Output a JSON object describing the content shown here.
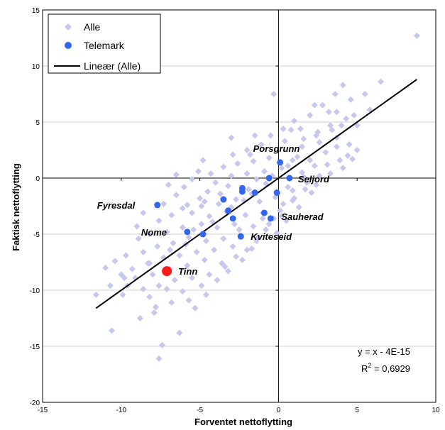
{
  "chart_data": {
    "type": "scatter",
    "xlabel": "Forventet nettoflytting",
    "ylabel": "Faktisk nettoflytting",
    "xlim": [
      -15,
      10
    ],
    "ylim": [
      -20,
      15
    ],
    "xticks": [
      -15,
      -10,
      -5,
      0,
      5,
      10
    ],
    "yticks": [
      -20,
      -15,
      -10,
      -5,
      0,
      5,
      10,
      15
    ],
    "xtick_labels": [
      "-15",
      "-10",
      "-5",
      "0",
      "5",
      "10"
    ],
    "ytick_labels": [
      "-20",
      "-15",
      "-10",
      "-5",
      "0",
      "5",
      "10",
      "15"
    ],
    "grid": "horizontal",
    "legend_position": "top-left",
    "legend": [
      {
        "key": "alle",
        "label": "Alle"
      },
      {
        "key": "telemark",
        "label": "Telemark"
      },
      {
        "key": "trend",
        "label": "Lineær (Alle)"
      }
    ],
    "equation": {
      "line1": "y = x - 4E-15",
      "line2_prefix": "R",
      "line2_sup": "2",
      "line2_suffix": " = 0,6929"
    },
    "colors": {
      "alle": "#c8c8ee",
      "telemark": "#3366ee",
      "tinn": "#ff1a1a",
      "trend": "#000000"
    },
    "trendline": {
      "x": [
        -11.6,
        8.8
      ],
      "y": [
        -11.6,
        8.8
      ]
    },
    "series_alle": [
      [
        8.8,
        12.7
      ],
      [
        6.5,
        8.6
      ],
      [
        5.5,
        7.5
      ],
      [
        4.1,
        8.3
      ],
      [
        4.6,
        7.0
      ],
      [
        3.6,
        7.5
      ],
      [
        2.8,
        6.5
      ],
      [
        2.3,
        6.5
      ],
      [
        3.2,
        5.9
      ],
      [
        3.7,
        5.9
      ],
      [
        -0.3,
        7.5
      ],
      [
        5.0,
        4.7
      ],
      [
        4.0,
        4.7
      ],
      [
        3.3,
        4.7
      ],
      [
        2.5,
        4.1
      ],
      [
        1.4,
        4.4
      ],
      [
        0.8,
        4.3
      ],
      [
        0.3,
        4.4
      ],
      [
        -0.5,
        3.8
      ],
      [
        1.6,
        3.5
      ],
      [
        2.6,
        3.2
      ],
      [
        3.7,
        2.8
      ],
      [
        4.5,
        3.0
      ],
      [
        5.0,
        2.5
      ],
      [
        1.5,
        2.8
      ],
      [
        0.4,
        3.3
      ],
      [
        -1.1,
        3.0
      ],
      [
        -2.0,
        2.5
      ],
      [
        -2.9,
        2.1
      ],
      [
        2.0,
        1.6
      ],
      [
        3.1,
        1.2
      ],
      [
        4.1,
        0.9
      ],
      [
        4.4,
        2.0
      ],
      [
        0.9,
        1.6
      ],
      [
        -0.6,
        1.8
      ],
      [
        -1.6,
        1.5
      ],
      [
        -2.6,
        1.3
      ],
      [
        -3.5,
        1.0
      ],
      [
        -4.3,
        0.4
      ],
      [
        2.6,
        0.2
      ],
      [
        1.5,
        0.5
      ],
      [
        0.2,
        0.9
      ],
      [
        -0.9,
        0.6
      ],
      [
        -2.0,
        0.4
      ],
      [
        -3.0,
        0.2
      ],
      [
        -4.0,
        -0.4
      ],
      [
        -5.5,
        -0.1
      ],
      [
        -6.0,
        -0.8
      ],
      [
        1.8,
        -0.4
      ],
      [
        0.6,
        -0.8
      ],
      [
        -0.8,
        -0.5
      ],
      [
        -1.9,
        -1.0
      ],
      [
        -3.2,
        -0.7
      ],
      [
        -4.5,
        -1.2
      ],
      [
        -5.0,
        -1.8
      ],
      [
        -6.5,
        -1.5
      ],
      [
        2.1,
        -1.3
      ],
      [
        1.0,
        -1.8
      ],
      [
        -0.2,
        -1.7
      ],
      [
        -1.2,
        -2.1
      ],
      [
        -2.7,
        -1.9
      ],
      [
        -3.8,
        -2.3
      ],
      [
        -4.9,
        -2.5
      ],
      [
        -6.1,
        -2.7
      ],
      [
        1.3,
        -2.6
      ],
      [
        0.1,
        -2.9
      ],
      [
        -1.0,
        -3.1
      ],
      [
        -2.1,
        -3.3
      ],
      [
        -3.3,
        -3.0
      ],
      [
        -4.4,
        -3.4
      ],
      [
        -5.5,
        -3.1
      ],
      [
        -6.8,
        -3.3
      ],
      [
        -7.6,
        -3.8
      ],
      [
        0.5,
        -3.8
      ],
      [
        -0.6,
        -4.1
      ],
      [
        -1.6,
        -4.3
      ],
      [
        -2.8,
        -4.1
      ],
      [
        -3.9,
        -4.4
      ],
      [
        -4.9,
        -4.1
      ],
      [
        -6.1,
        -4.4
      ],
      [
        -7.1,
        -4.8
      ],
      [
        -8.2,
        -5.0
      ],
      [
        -0.1,
        -4.9
      ],
      [
        -1.3,
        -5.3
      ],
      [
        -2.4,
        -5.1
      ],
      [
        -3.5,
        -5.4
      ],
      [
        -4.6,
        -5.6
      ],
      [
        -5.7,
        -5.3
      ],
      [
        -6.7,
        -5.8
      ],
      [
        -7.7,
        -6.1
      ],
      [
        -8.6,
        -6.6
      ],
      [
        -1.7,
        -6.3
      ],
      [
        -2.9,
        -6.1
      ],
      [
        -4.1,
        -6.4
      ],
      [
        -5.2,
        -6.6
      ],
      [
        -6.3,
        -6.9
      ],
      [
        -7.3,
        -7.1
      ],
      [
        -8.3,
        -7.6
      ],
      [
        -9.3,
        -8.1
      ],
      [
        -2.3,
        -7.3
      ],
      [
        -3.6,
        -7.6
      ],
      [
        -4.7,
        -7.3
      ],
      [
        -5.8,
        -7.8
      ],
      [
        -6.9,
        -8.1
      ],
      [
        -8.0,
        -8.6
      ],
      [
        -9.1,
        -8.9
      ],
      [
        -10.0,
        -8.6
      ],
      [
        -3.2,
        -8.3
      ],
      [
        -4.4,
        -8.6
      ],
      [
        -5.5,
        -8.9
      ],
      [
        -6.6,
        -9.1
      ],
      [
        -7.6,
        -9.6
      ],
      [
        -8.6,
        -9.9
      ],
      [
        -9.6,
        -9.6
      ],
      [
        -4.9,
        -9.6
      ],
      [
        -6.1,
        -10.1
      ],
      [
        -7.1,
        -9.9
      ],
      [
        -8.2,
        -10.6
      ],
      [
        -9.9,
        -10.4
      ],
      [
        -11.6,
        -10.4
      ],
      [
        -5.7,
        -10.9
      ],
      [
        -6.8,
        -11.1
      ],
      [
        -7.8,
        -11.5
      ],
      [
        -7.9,
        -12.0
      ],
      [
        -8.8,
        -12.5
      ],
      [
        -10.6,
        -13.6
      ],
      [
        -6.3,
        -13.8
      ],
      [
        -7.4,
        -14.9
      ],
      [
        -7.6,
        -16.1
      ],
      [
        -8.2,
        -7.6
      ],
      [
        -9.8,
        -8.9
      ],
      [
        -10.7,
        -9.6
      ],
      [
        -5.3,
        -11.6
      ],
      [
        -4.6,
        -10.4
      ],
      [
        -3.9,
        -9.1
      ],
      [
        -3.4,
        -7.9
      ],
      [
        -2.7,
        -7.0
      ],
      [
        -2.0,
        -6.4
      ],
      [
        -1.4,
        -5.6
      ],
      [
        -0.8,
        -4.6
      ],
      [
        -0.3,
        -3.6
      ],
      [
        0.3,
        -2.3
      ],
      [
        0.9,
        -1.1
      ],
      [
        1.6,
        0.1
      ],
      [
        2.3,
        1.1
      ],
      [
        3.0,
        2.3
      ],
      [
        3.7,
        3.6
      ],
      [
        4.3,
        5.3
      ],
      [
        2.0,
        5.6
      ],
      [
        1.0,
        5.1
      ],
      [
        -1.5,
        3.8
      ],
      [
        -3.0,
        3.6
      ],
      [
        -1.8,
        2.1
      ],
      [
        -4.8,
        1.6
      ],
      [
        -5.1,
        0.6
      ],
      [
        -6.5,
        0.3
      ],
      [
        -7.0,
        -0.6
      ],
      [
        -7.3,
        -2.3
      ],
      [
        -8.6,
        -3.1
      ],
      [
        -9.0,
        -4.3
      ],
      [
        -8.9,
        -5.4
      ],
      [
        -9.7,
        -6.9
      ],
      [
        -10.4,
        -7.4
      ],
      [
        -11.0,
        -8.0
      ],
      [
        -1.4,
        -0.1
      ],
      [
        -0.4,
        0.2
      ],
      [
        0.6,
        1.1
      ],
      [
        1.2,
        1.9
      ],
      [
        2.4,
        3.8
      ],
      [
        3.4,
        4.3
      ],
      [
        4.8,
        5.6
      ],
      [
        5.8,
        6.1
      ],
      [
        -5.9,
        -5.9
      ],
      [
        -6.9,
        -6.4
      ],
      [
        -5.4,
        -4.6
      ],
      [
        -4.2,
        -3.9
      ],
      [
        -3.0,
        -2.6
      ],
      [
        -2.2,
        -2.0
      ],
      [
        -1.7,
        -1.4
      ],
      [
        -3.7,
        -1.4
      ],
      [
        -4.7,
        -2.1
      ],
      [
        -5.8,
        -2.4
      ],
      [
        -2.5,
        -4.6
      ],
      [
        -1.0,
        -3.6
      ],
      [
        0.2,
        -3.4
      ],
      [
        0.9,
        -2.0
      ],
      [
        1.7,
        -1.0
      ],
      [
        2.4,
        -0.6
      ],
      [
        3.3,
        0.4
      ],
      [
        3.9,
        1.6
      ],
      [
        4.7,
        1.7
      ]
    ],
    "series_telemark": [
      {
        "x": 0.1,
        "y": 1.4,
        "label": "Porsgrunn",
        "dx": -38,
        "dy": -15
      },
      {
        "x": 0.7,
        "y": 0.0,
        "label": "Seljord",
        "dx": 12,
        "dy": 6
      },
      {
        "x": -7.7,
        "y": -2.4,
        "label": "Fyresdal",
        "dx": -85,
        "dy": 5
      },
      {
        "x": -0.5,
        "y": -3.6,
        "label": "Sauherad",
        "dx": 15,
        "dy": 2
      },
      {
        "x": -2.4,
        "y": -5.2,
        "label": "Kviteseid",
        "dx": 14,
        "dy": 5
      },
      {
        "x": -5.8,
        "y": -4.8,
        "label": "Nome",
        "dx": -65,
        "dy": 5
      },
      {
        "x": -0.1,
        "y": -1.3,
        "label": ""
      },
      {
        "x": -0.6,
        "y": 0.0,
        "label": ""
      },
      {
        "x": -1.5,
        "y": -1.3,
        "label": ""
      },
      {
        "x": -2.3,
        "y": -0.9,
        "label": ""
      },
      {
        "x": -2.3,
        "y": -1.2,
        "label": ""
      },
      {
        "x": -3.5,
        "y": -1.9,
        "label": ""
      },
      {
        "x": -3.2,
        "y": -2.9,
        "label": ""
      },
      {
        "x": -2.9,
        "y": -3.6,
        "label": ""
      },
      {
        "x": -0.9,
        "y": -3.1,
        "label": ""
      },
      {
        "x": -4.8,
        "y": -5.0,
        "label": ""
      }
    ],
    "highlight": {
      "x": -7.1,
      "y": -8.3,
      "label": "Tinn",
      "dx": 16,
      "dy": 5
    }
  }
}
